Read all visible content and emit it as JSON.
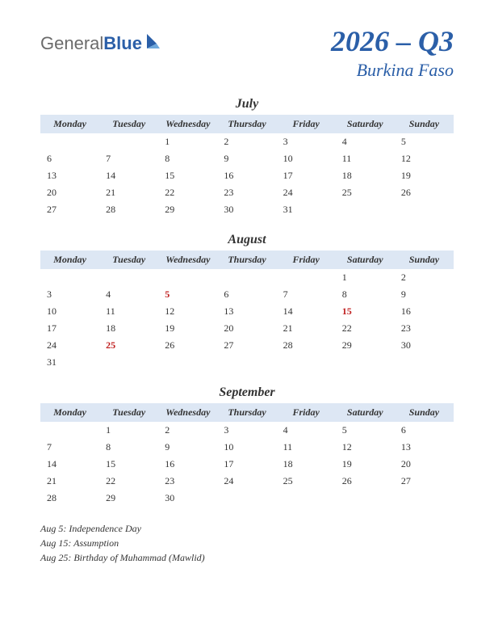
{
  "logo": {
    "part1": "General",
    "part2": "Blue"
  },
  "title": {
    "main": "2026 – Q3",
    "sub": "Burkina Faso"
  },
  "colors": {
    "header_bg": "#dde7f4",
    "accent": "#2b5fa8",
    "holiday": "#c02020",
    "text": "#333333"
  },
  "day_headers": [
    "Monday",
    "Tuesday",
    "Wednesday",
    "Thursday",
    "Friday",
    "Saturday",
    "Sunday"
  ],
  "months": [
    {
      "name": "July",
      "weeks": [
        [
          "",
          "",
          "1",
          "2",
          "3",
          "4",
          "5"
        ],
        [
          "6",
          "7",
          "8",
          "9",
          "10",
          "11",
          "12"
        ],
        [
          "13",
          "14",
          "15",
          "16",
          "17",
          "18",
          "19"
        ],
        [
          "20",
          "21",
          "22",
          "23",
          "24",
          "25",
          "26"
        ],
        [
          "27",
          "28",
          "29",
          "30",
          "31",
          "",
          ""
        ]
      ],
      "holidays": []
    },
    {
      "name": "August",
      "weeks": [
        [
          "",
          "",
          "",
          "",
          "",
          "1",
          "2"
        ],
        [
          "3",
          "4",
          "5",
          "6",
          "7",
          "8",
          "9"
        ],
        [
          "10",
          "11",
          "12",
          "13",
          "14",
          "15",
          "16"
        ],
        [
          "17",
          "18",
          "19",
          "20",
          "21",
          "22",
          "23"
        ],
        [
          "24",
          "25",
          "26",
          "27",
          "28",
          "29",
          "30"
        ],
        [
          "31",
          "",
          "",
          "",
          "",
          "",
          ""
        ]
      ],
      "holidays": [
        "5",
        "15",
        "25"
      ]
    },
    {
      "name": "September",
      "weeks": [
        [
          "",
          "1",
          "2",
          "3",
          "4",
          "5",
          "6"
        ],
        [
          "7",
          "8",
          "9",
          "10",
          "11",
          "12",
          "13"
        ],
        [
          "14",
          "15",
          "16",
          "17",
          "18",
          "19",
          "20"
        ],
        [
          "21",
          "22",
          "23",
          "24",
          "25",
          "26",
          "27"
        ],
        [
          "28",
          "29",
          "30",
          "",
          "",
          "",
          ""
        ]
      ],
      "holidays": []
    }
  ],
  "holiday_list": [
    "Aug 5: Independence Day",
    "Aug 15: Assumption",
    "Aug 25: Birthday of Muhammad (Mawlid)"
  ]
}
